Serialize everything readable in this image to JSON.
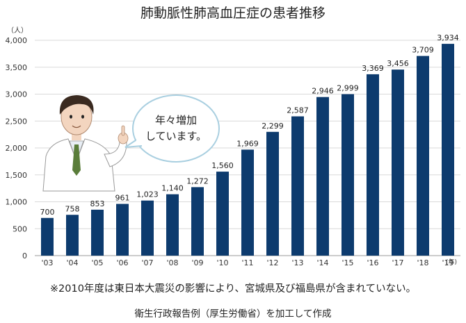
{
  "chart_data": {
    "type": "bar",
    "title": "肺動脈性肺高血圧症の患者推移",
    "ylabel_unit": "（人）",
    "xlabel_unit": "(年)",
    "categories": [
      "'03",
      "'04",
      "'05",
      "'06",
      "'07",
      "'08",
      "'09",
      "'10",
      "'11",
      "'12",
      "'13",
      "'14",
      "'15",
      "'16",
      "'17",
      "'18",
      "'19"
    ],
    "values": [
      700,
      758,
      853,
      961,
      1023,
      1140,
      1272,
      1560,
      1969,
      2299,
      2587,
      2946,
      2999,
      3369,
      3456,
      3709,
      3934
    ],
    "value_labels": [
      "700",
      "758",
      "853",
      "961",
      "1,023",
      "1,140",
      "1,272",
      "1,560",
      "1,969",
      "2,299",
      "2,587",
      "2,946",
      "2,999",
      "3,369",
      "3,456",
      "3,709",
      "3,934"
    ],
    "yticks": [
      "0",
      "500",
      "1,000",
      "1,500",
      "2,000",
      "2,500",
      "3,000",
      "3,500",
      "4,000"
    ],
    "ylim": [
      0,
      4000
    ],
    "grid": true,
    "bar_color": "#0d3b6e"
  },
  "bubble": {
    "line1": "年々増加",
    "line2": "しています。"
  },
  "note": "※2010年度は東日本大震災の影響により、宮城県及び福島県が含まれていない。",
  "source": "衛生行政報告例（厚生労働省）を加工して作成"
}
